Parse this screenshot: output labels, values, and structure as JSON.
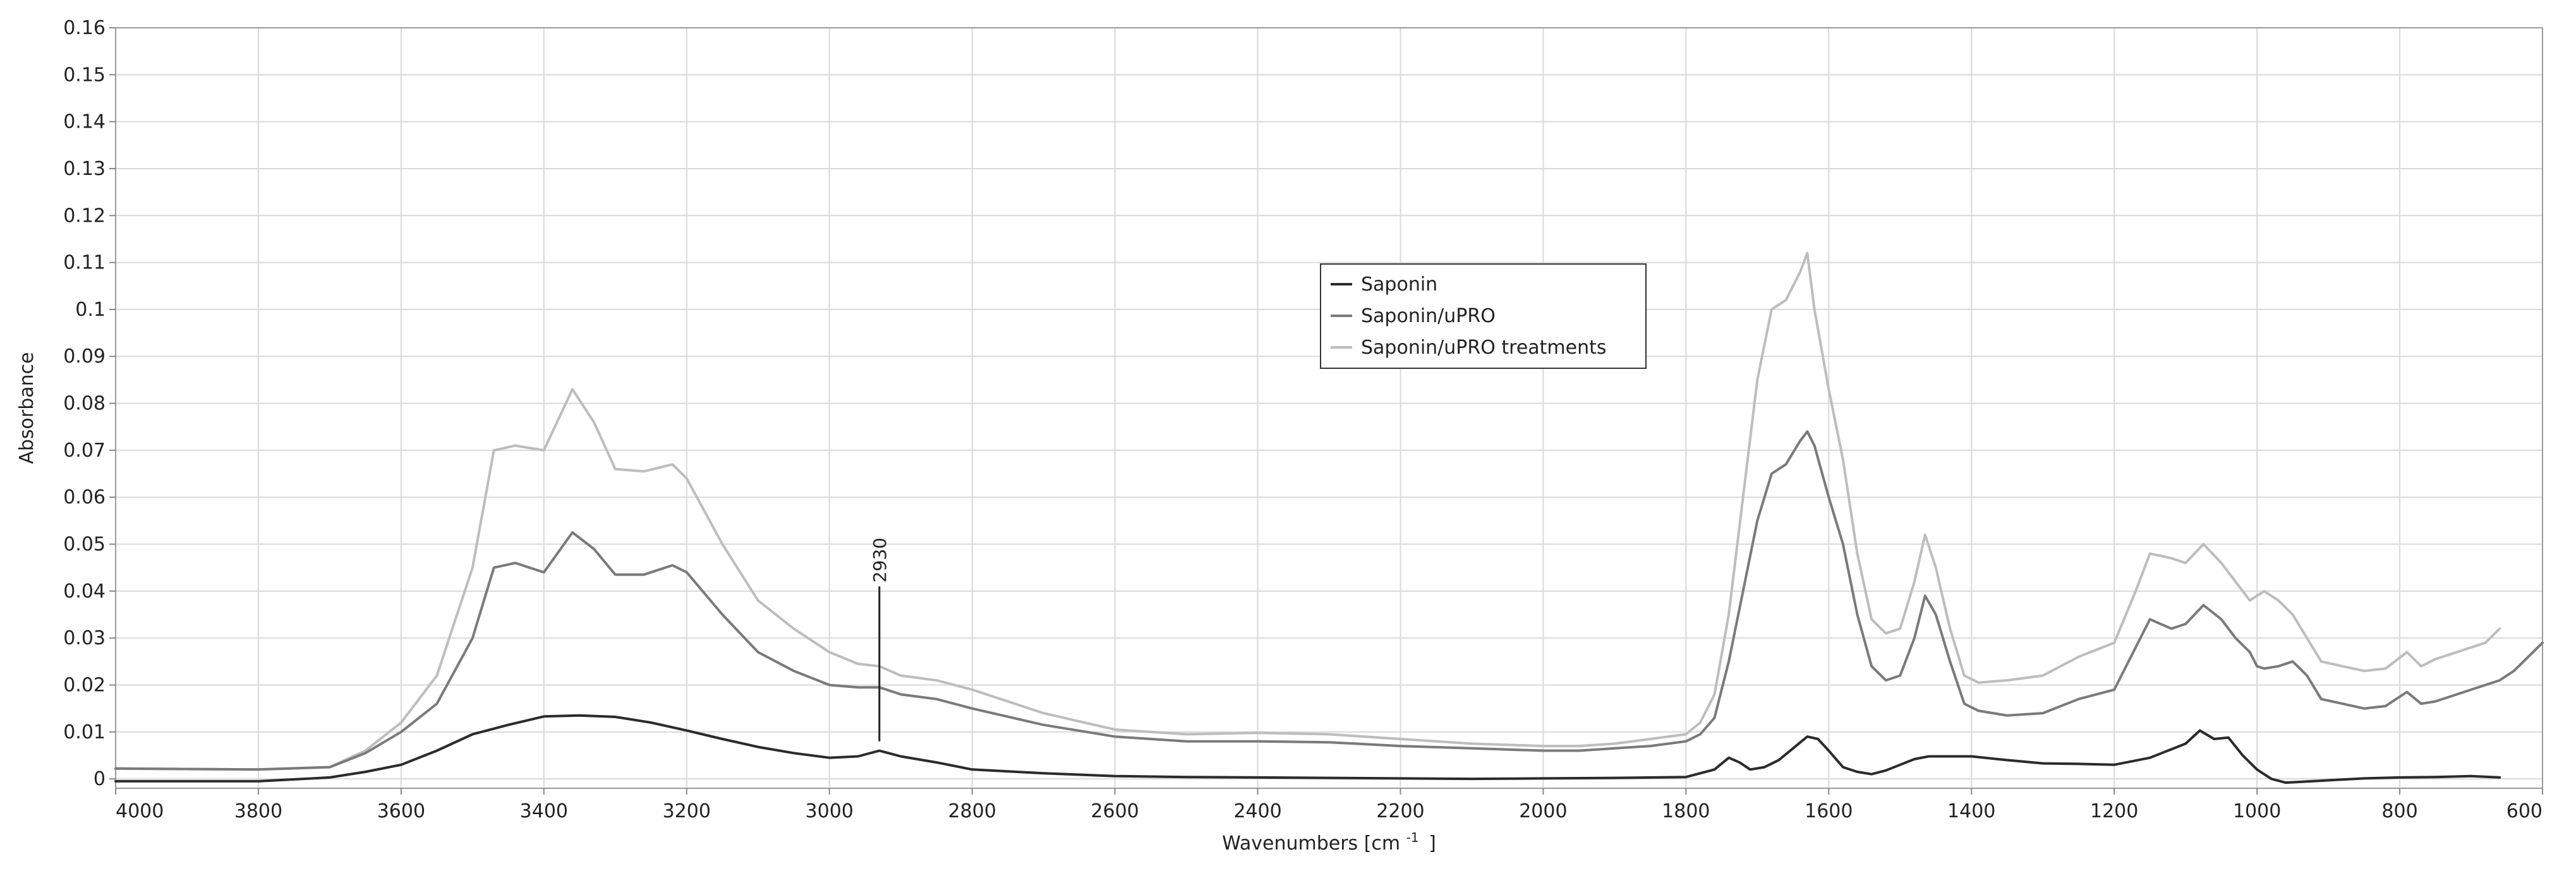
{
  "chart_data": {
    "type": "line",
    "xlabel": "Wavenumbers [cm",
    "xlabel_sup": "-1",
    "xlabel_close": "]",
    "ylabel": "Absorbance",
    "xlim": [
      4000,
      600
    ],
    "ylim": [
      -0.002,
      0.16
    ],
    "x_reversed": true,
    "grid": true,
    "legend_position": "center",
    "xticks": [
      4000,
      3800,
      3600,
      3400,
      3200,
      3000,
      2800,
      2600,
      2400,
      2200,
      2000,
      1800,
      1600,
      1400,
      1200,
      1000,
      800,
      600
    ],
    "xtick_labels": [
      "4000",
      "3800",
      "3600",
      "3400",
      "3200",
      "3000",
      "2800",
      "2600",
      "2400",
      "2200",
      "2000",
      "1800",
      "1600",
      "1400",
      "1200",
      "1000",
      "800",
      "600"
    ],
    "yticks": [
      0,
      0.01,
      0.02,
      0.03,
      0.04,
      0.05,
      0.06,
      0.07,
      0.08,
      0.09,
      0.1,
      0.11,
      0.12,
      0.13,
      0.14,
      0.15,
      0.16
    ],
    "ytick_labels": [
      "0",
      "0.01",
      "0.02",
      "0.03",
      "0.04",
      "0.05",
      "0.06",
      "0.07",
      "0.08",
      "0.09",
      "0.1",
      "0.11",
      "0.12",
      "0.13",
      "0.14",
      "0.15",
      "0.16"
    ],
    "annotations": [
      {
        "text": "2930",
        "x": 2930,
        "y_start": 0.008,
        "y_end": 0.041
      }
    ],
    "series": [
      {
        "name": "Saponin",
        "color": "#2b2b2b",
        "x": [
          4000,
          3800,
          3700,
          3650,
          3600,
          3550,
          3500,
          3450,
          3400,
          3350,
          3300,
          3250,
          3200,
          3150,
          3100,
          3050,
          3000,
          2960,
          2930,
          2900,
          2850,
          2800,
          2700,
          2600,
          2500,
          2400,
          2300,
          2200,
          2100,
          2000,
          1900,
          1800,
          1760,
          1740,
          1725,
          1710,
          1690,
          1670,
          1650,
          1630,
          1615,
          1600,
          1580,
          1560,
          1540,
          1520,
          1500,
          1480,
          1460,
          1440,
          1400,
          1350,
          1300,
          1250,
          1200,
          1150,
          1100,
          1080,
          1060,
          1040,
          1020,
          1000,
          980,
          960,
          900,
          850,
          800,
          750,
          700,
          660
        ],
        "y": [
          -0.0005,
          -0.0005,
          0.0003,
          0.0015,
          0.003,
          0.006,
          0.0095,
          0.0115,
          0.0133,
          0.0135,
          0.0132,
          0.012,
          0.0103,
          0.0085,
          0.0068,
          0.0055,
          0.0045,
          0.0048,
          0.006,
          0.0048,
          0.0035,
          0.002,
          0.0012,
          0.0006,
          0.0004,
          0.0003,
          0.0002,
          0.0001,
          0.0,
          0.0001,
          0.0002,
          0.0004,
          0.002,
          0.0045,
          0.0035,
          0.002,
          0.0025,
          0.004,
          0.0065,
          0.009,
          0.0085,
          0.006,
          0.0025,
          0.0015,
          0.001,
          0.0018,
          0.003,
          0.0042,
          0.0048,
          0.0048,
          0.0048,
          0.004,
          0.0033,
          0.0032,
          0.003,
          0.0045,
          0.0075,
          0.0103,
          0.0085,
          0.0088,
          0.005,
          0.002,
          0.0,
          -0.0008,
          -0.0003,
          0.0001,
          0.0003,
          0.0004,
          0.0006,
          0.0003
        ]
      },
      {
        "name": "Saponin/uPRO",
        "color": "#7a7a7a",
        "x": [
          4000,
          3800,
          3700,
          3650,
          3600,
          3550,
          3500,
          3470,
          3440,
          3400,
          3360,
          3330,
          3300,
          3260,
          3220,
          3200,
          3150,
          3100,
          3050,
          3000,
          2960,
          2930,
          2900,
          2850,
          2800,
          2700,
          2600,
          2500,
          2400,
          2300,
          2200,
          2100,
          2000,
          1950,
          1900,
          1850,
          1800,
          1780,
          1760,
          1740,
          1720,
          1700,
          1680,
          1660,
          1640,
          1630,
          1620,
          1600,
          1580,
          1560,
          1540,
          1520,
          1500,
          1480,
          1465,
          1450,
          1430,
          1410,
          1390,
          1350,
          1300,
          1250,
          1200,
          1170,
          1150,
          1120,
          1100,
          1075,
          1050,
          1030,
          1010,
          1000,
          990,
          970,
          950,
          930,
          910,
          880,
          850,
          820,
          790,
          770,
          750,
          720,
          700,
          680,
          660,
          640,
          620,
          600
        ],
        "y": [
          0.0022,
          0.002,
          0.0025,
          0.0055,
          0.01,
          0.016,
          0.03,
          0.045,
          0.046,
          0.044,
          0.0525,
          0.049,
          0.0435,
          0.0435,
          0.0455,
          0.044,
          0.035,
          0.027,
          0.023,
          0.02,
          0.0195,
          0.0195,
          0.018,
          0.017,
          0.015,
          0.0115,
          0.009,
          0.008,
          0.008,
          0.0078,
          0.007,
          0.0065,
          0.006,
          0.006,
          0.0065,
          0.007,
          0.008,
          0.0095,
          0.013,
          0.025,
          0.04,
          0.055,
          0.065,
          0.067,
          0.072,
          0.074,
          0.071,
          0.06,
          0.05,
          0.035,
          0.024,
          0.021,
          0.022,
          0.03,
          0.039,
          0.035,
          0.025,
          0.016,
          0.0145,
          0.0135,
          0.014,
          0.017,
          0.019,
          0.028,
          0.034,
          0.032,
          0.033,
          0.037,
          0.034,
          0.03,
          0.027,
          0.024,
          0.0235,
          0.024,
          0.025,
          0.022,
          0.017,
          0.016,
          0.015,
          0.0155,
          0.0185,
          0.016,
          0.0165,
          0.018,
          0.019,
          0.02,
          0.021,
          0.023,
          0.026,
          0.029
        ]
      },
      {
        "name": "Saponin/uPRO treatments",
        "color": "#bdbdbd",
        "x": [
          4000,
          3800,
          3700,
          3650,
          3600,
          3550,
          3500,
          3470,
          3440,
          3400,
          3360,
          3330,
          3300,
          3260,
          3220,
          3200,
          3150,
          3100,
          3050,
          3000,
          2960,
          2930,
          2900,
          2850,
          2800,
          2700,
          2600,
          2500,
          2400,
          2300,
          2200,
          2100,
          2000,
          1950,
          1900,
          1850,
          1800,
          1780,
          1760,
          1740,
          1720,
          1700,
          1680,
          1660,
          1640,
          1630,
          1620,
          1600,
          1580,
          1560,
          1540,
          1520,
          1500,
          1480,
          1465,
          1450,
          1430,
          1410,
          1390,
          1350,
          1300,
          1250,
          1200,
          1170,
          1150,
          1120,
          1100,
          1075,
          1050,
          1030,
          1010,
          1000,
          990,
          970,
          950,
          930,
          910,
          880,
          850,
          820,
          790,
          770,
          750,
          720,
          700,
          680,
          660
        ],
        "y": [
          0.0022,
          0.002,
          0.0025,
          0.006,
          0.012,
          0.022,
          0.045,
          0.07,
          0.071,
          0.07,
          0.083,
          0.076,
          0.066,
          0.0655,
          0.067,
          0.064,
          0.05,
          0.038,
          0.032,
          0.027,
          0.0245,
          0.024,
          0.022,
          0.021,
          0.019,
          0.014,
          0.0105,
          0.0095,
          0.0098,
          0.0095,
          0.0085,
          0.0075,
          0.007,
          0.007,
          0.0075,
          0.0085,
          0.0095,
          0.012,
          0.018,
          0.035,
          0.06,
          0.085,
          0.1,
          0.102,
          0.108,
          0.112,
          0.1,
          0.083,
          0.068,
          0.048,
          0.034,
          0.031,
          0.032,
          0.042,
          0.052,
          0.045,
          0.032,
          0.022,
          0.0205,
          0.021,
          0.022,
          0.026,
          0.029,
          0.04,
          0.048,
          0.047,
          0.046,
          0.05,
          0.046,
          0.042,
          0.038,
          0.039,
          0.04,
          0.038,
          0.035,
          0.03,
          0.025,
          0.024,
          0.023,
          0.0235,
          0.027,
          0.024,
          0.0255,
          0.027,
          0.028,
          0.029,
          0.032
        ]
      }
    ]
  }
}
